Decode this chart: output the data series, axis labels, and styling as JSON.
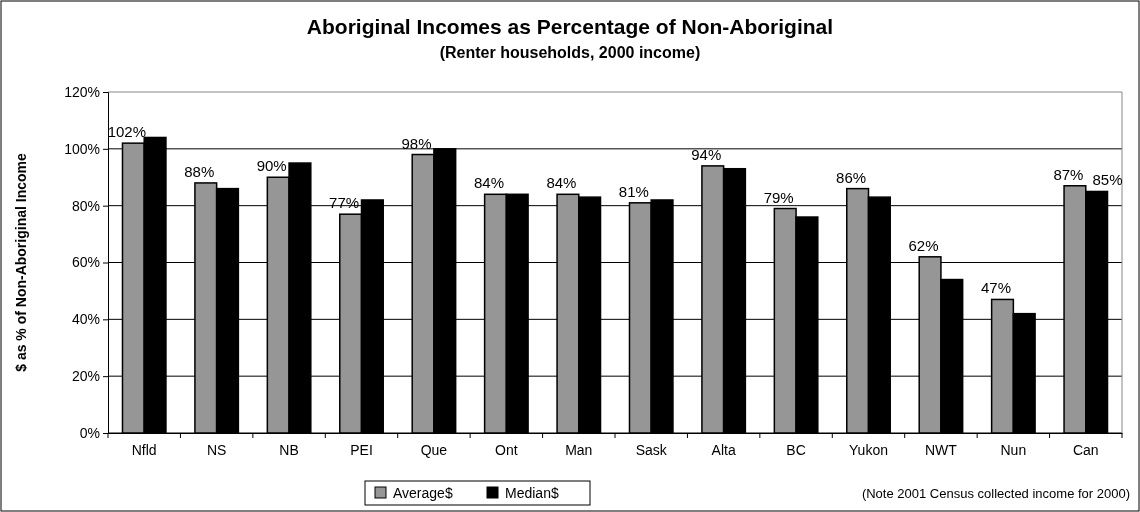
{
  "chart_data": {
    "type": "bar",
    "title": "Aboriginal Incomes as Percentage of Non-Aboriginal",
    "subtitle": "(Renter households, 2000 income)",
    "ylabel": "$ as % of Non-Aboriginal Income",
    "categories": [
      "Nfld",
      "NS",
      "NB",
      "PEI",
      "Que",
      "Ont",
      "Man",
      "Sask",
      "Alta",
      "BC",
      "Yukon",
      "NWT",
      "Nun",
      "Can"
    ],
    "series": [
      {
        "name": "Average$",
        "color": "#969696",
        "values": [
          102,
          88,
          90,
          77,
          98,
          84,
          84,
          81,
          94,
          79,
          86,
          62,
          47,
          87
        ],
        "value_labels": [
          "102%",
          "88%",
          "90%",
          "77%",
          "98%",
          "84%",
          "84%",
          "81%",
          "94%",
          "79%",
          "86%",
          "62%",
          "47%",
          "87%"
        ]
      },
      {
        "name": "Median$",
        "color": "#000000",
        "values": [
          104,
          86,
          95,
          82,
          100,
          84,
          83,
          82,
          93,
          76,
          83,
          54,
          42,
          85
        ],
        "value_labels": [
          null,
          null,
          null,
          null,
          null,
          null,
          null,
          null,
          null,
          null,
          null,
          null,
          null,
          "85%"
        ]
      }
    ],
    "ylim": [
      0,
      120
    ],
    "yticks": [
      {
        "value": 0,
        "label": "0%"
      },
      {
        "value": 20,
        "label": "20%"
      },
      {
        "value": 40,
        "label": "40%"
      },
      {
        "value": 60,
        "label": "60%"
      },
      {
        "value": 80,
        "label": "80%"
      },
      {
        "value": 100,
        "label": "100%"
      },
      {
        "value": 120,
        "label": "120%"
      }
    ],
    "grid": "y",
    "legend": "bottom",
    "annotations": [
      "(Note 2001 Census collected income for 2000)"
    ]
  }
}
